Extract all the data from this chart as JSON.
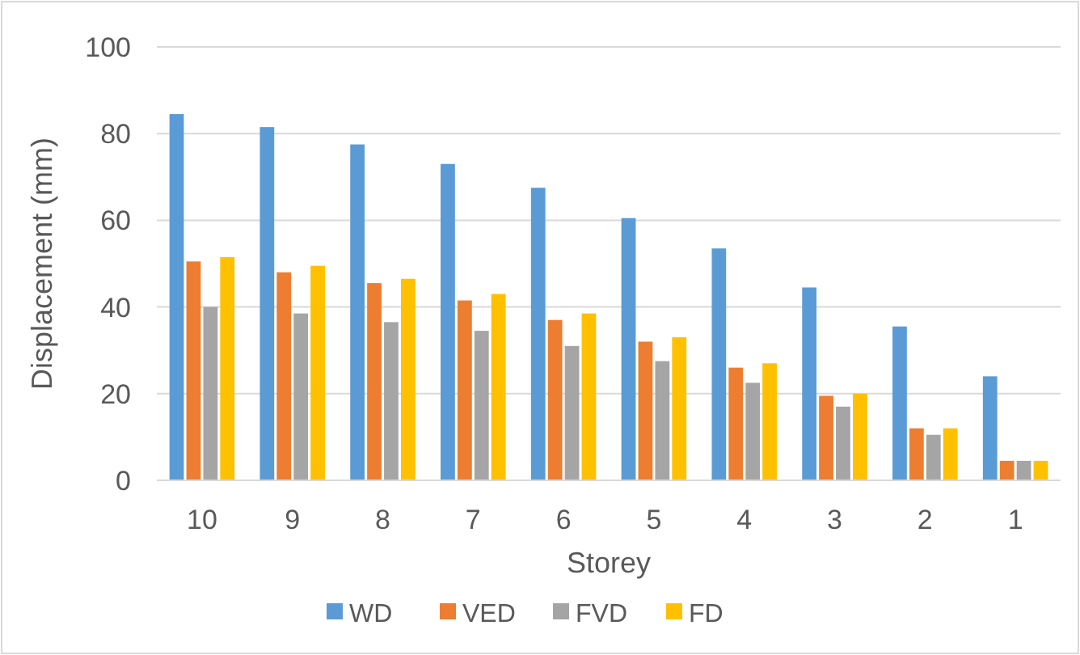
{
  "chart_data": {
    "type": "bar",
    "xlabel": "Storey",
    "ylabel": "Displacement (mm)",
    "categories": [
      "10",
      "9",
      "8",
      "7",
      "6",
      "5",
      "4",
      "3",
      "2",
      "1"
    ],
    "series": [
      {
        "name": "WD",
        "color": "#5b9bd5",
        "values": [
          84.5,
          81.5,
          77.5,
          73,
          67.5,
          60.5,
          53.5,
          44.5,
          35.5,
          24
        ]
      },
      {
        "name": "VED",
        "color": "#ed7d31",
        "values": [
          50.5,
          48,
          45.5,
          41.5,
          37,
          32,
          26,
          19.5,
          12,
          4.5
        ]
      },
      {
        "name": "FVD",
        "color": "#a5a5a5",
        "values": [
          40,
          38.5,
          36.5,
          34.5,
          31,
          27.5,
          22.5,
          17,
          10.5,
          4.5
        ]
      },
      {
        "name": "FD",
        "color": "#ffc000",
        "values": [
          51.5,
          49.5,
          46.5,
          43,
          38.5,
          33,
          27,
          20,
          12,
          4.5
        ]
      }
    ],
    "ylim": [
      0,
      100
    ],
    "yticks": [
      0,
      20,
      40,
      60,
      80,
      100
    ],
    "grid": "y",
    "legend": "bottom"
  }
}
